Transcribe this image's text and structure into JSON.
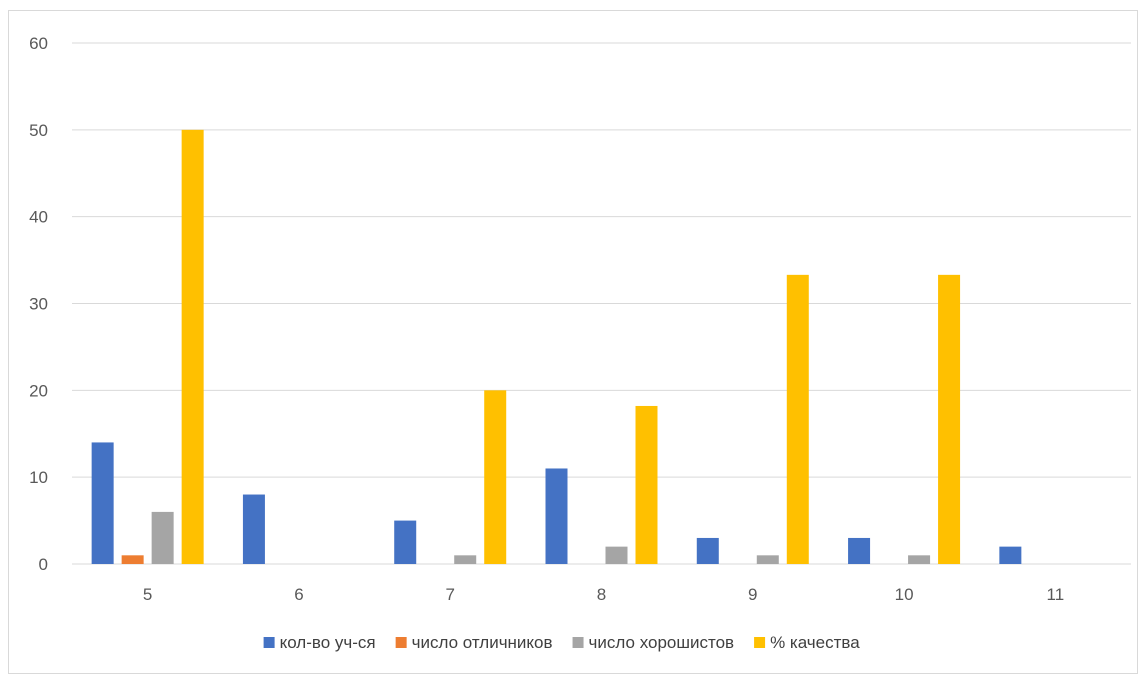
{
  "chart_data": {
    "type": "bar",
    "title": "",
    "xlabel": "",
    "ylabel": "",
    "ylim": [
      0,
      60
    ],
    "yticks": [
      0,
      10,
      20,
      30,
      40,
      50,
      60
    ],
    "grid": true,
    "legend_position": "bottom",
    "categories": [
      "5",
      "6",
      "7",
      "8",
      "9",
      "10",
      "11"
    ],
    "series": [
      {
        "name": "кол-во уч-ся",
        "color": "#4472C4",
        "values": [
          14,
          8,
          5,
          11,
          3,
          3,
          2
        ]
      },
      {
        "name": "число отличников",
        "color": "#ED7D31",
        "values": [
          1,
          0,
          0,
          0,
          0,
          0,
          0
        ]
      },
      {
        "name": "число хорошистов",
        "color": "#A5A5A5",
        "values": [
          6,
          0,
          1,
          2,
          1,
          1,
          0
        ]
      },
      {
        "name": "% качества",
        "color": "#FFC000",
        "values": [
          50,
          0,
          20,
          18.2,
          33.3,
          33.3,
          0
        ]
      }
    ]
  }
}
